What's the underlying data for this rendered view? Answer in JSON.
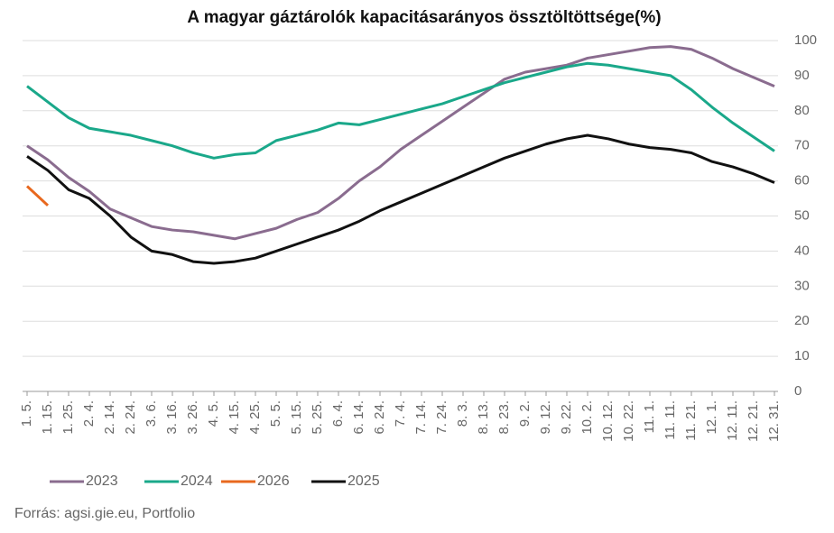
{
  "chart_data": {
    "type": "line",
    "title": "A magyar gáztárolók kapacitásarányos össztöltöttsége(%)",
    "source": "Forrás: agsi.gie.eu, Portfolio",
    "categories": [
      "1. 5.",
      "1. 15.",
      "1. 25.",
      "2. 4.",
      "2. 14.",
      "2. 24.",
      "3. 6.",
      "3. 16.",
      "3. 26.",
      "4. 5.",
      "4. 15.",
      "4. 25.",
      "5. 5.",
      "5. 15.",
      "5. 25.",
      "6. 4.",
      "6. 14.",
      "6. 24.",
      "7. 4.",
      "7. 14.",
      "7. 24.",
      "8. 3.",
      "8. 13.",
      "8. 23.",
      "9. 2.",
      "9. 12.",
      "9. 22.",
      "10. 2.",
      "10. 12.",
      "10. 22.",
      "11. 1.",
      "11. 11.",
      "11. 21.",
      "12. 1.",
      "12. 11.",
      "12. 21.",
      "12. 31."
    ],
    "series": [
      {
        "name": "2023",
        "color": "#8a6c8f",
        "values": [
          70,
          66,
          61,
          57,
          52,
          49.5,
          47,
          46,
          45.5,
          44.5,
          43.5,
          45,
          46.5,
          49,
          51,
          55,
          60,
          64,
          69,
          73,
          77,
          81,
          85,
          89,
          91,
          92,
          93,
          95,
          96,
          97,
          98,
          98.3,
          97.5,
          95,
          92,
          89.5,
          87
        ]
      },
      {
        "name": "2024",
        "color": "#1aa88a",
        "values": [
          87,
          82.5,
          78,
          75,
          74,
          73,
          71.5,
          70,
          68,
          66.5,
          67.5,
          68,
          71.5,
          73,
          74.5,
          76.5,
          76,
          77.5,
          79,
          80.5,
          82,
          84,
          86,
          88,
          89.5,
          91,
          92.5,
          93.5,
          93,
          92,
          91,
          90,
          86,
          81,
          76.5,
          72.5,
          68.5
        ]
      },
      {
        "name": "2026",
        "color": "#e8681e",
        "values": [
          58.5,
          53,
          null,
          null,
          null,
          null,
          null,
          null,
          null,
          null,
          null,
          null,
          null,
          null,
          null,
          null,
          null,
          null,
          null,
          null,
          null,
          null,
          null,
          null,
          null,
          null,
          null,
          null,
          null,
          null,
          null,
          null,
          null,
          null,
          null,
          null,
          null
        ]
      },
      {
        "name": "2025",
        "color": "#111111",
        "values": [
          67,
          63,
          57.5,
          55,
          50,
          44,
          40,
          39,
          37,
          36.5,
          37,
          38,
          40,
          42,
          44,
          46,
          48.5,
          51.5,
          54,
          56.5,
          59,
          61.5,
          64,
          66.5,
          68.5,
          70.5,
          72,
          73,
          72,
          70.5,
          69.5,
          69,
          68,
          65.5,
          64,
          62,
          59.5
        ]
      }
    ],
    "ylim": [
      0,
      100
    ],
    "yticks": [
      0,
      10,
      20,
      30,
      40,
      50,
      60,
      70,
      80,
      90,
      100
    ],
    "grid": true
  }
}
